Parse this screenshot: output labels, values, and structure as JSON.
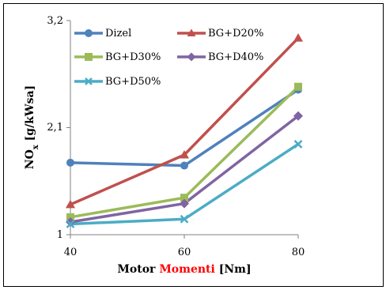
{
  "chart_data": {
    "type": "line",
    "x": [
      40,
      60,
      80
    ],
    "xlim": [
      40,
      80
    ],
    "ylim": [
      1,
      3.2
    ],
    "x_ticks": [
      "40",
      "60",
      "80"
    ],
    "y_ticks": [
      "1",
      "2,1",
      "3,2"
    ],
    "grid": false,
    "legend_position": "top",
    "xlabel": {
      "prefix": "Motor ",
      "highlight": "Momenti",
      "suffix": " [Nm]",
      "highlight_color": "#ff0000"
    },
    "ylabel": {
      "base": "NO",
      "subscript": "x",
      "suffix": " [g/kWsa]"
    },
    "series": [
      {
        "name": "Dizel",
        "color": "#4f81bd",
        "marker": "circle",
        "values": [
          1.74,
          1.71,
          2.49
        ]
      },
      {
        "name": "BG+D20%",
        "color": "#c0504d",
        "marker": "triangle",
        "values": [
          1.31,
          1.82,
          3.02
        ]
      },
      {
        "name": "BG+D30%",
        "color": "#9bbb59",
        "marker": "square",
        "values": [
          1.18,
          1.38,
          2.52
        ]
      },
      {
        "name": "BG+D40%",
        "color": "#8064a2",
        "marker": "diamond",
        "values": [
          1.13,
          1.32,
          2.22
        ]
      },
      {
        "name": "BG+D50%",
        "color": "#4bacc6",
        "marker": "x",
        "values": [
          1.11,
          1.16,
          1.93
        ]
      }
    ]
  }
}
